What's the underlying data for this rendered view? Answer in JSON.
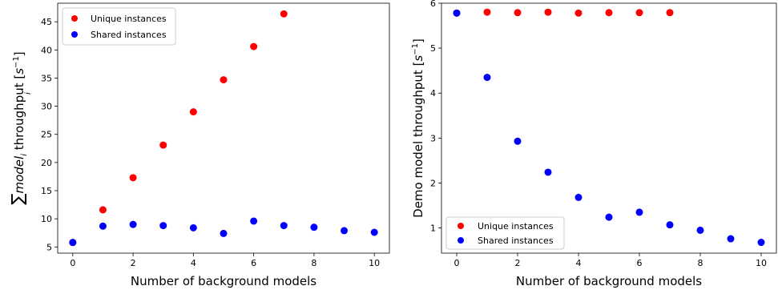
{
  "chart_data": [
    {
      "type": "scatter",
      "xlabel": "Number of background models",
      "ylabel_parts": {
        "sum": "∑",
        "sub_i": "i",
        "model": "model",
        "model_sub": "i",
        "rest": " throughput [",
        "unit": "s",
        "exp": "−1",
        "close": "]"
      },
      "xlim": [
        -0.5,
        10.5
      ],
      "ylim": [
        3.9,
        48.3
      ],
      "xticks": [
        0,
        2,
        4,
        6,
        8,
        10
      ],
      "yticks": [
        5,
        10,
        15,
        20,
        25,
        30,
        35,
        40,
        45
      ],
      "legend_position": "top-left",
      "series": [
        {
          "name": "Unique instances",
          "color": "#ff0000",
          "x": [
            0,
            1,
            2,
            3,
            4,
            5,
            6,
            7
          ],
          "y": [
            5.8,
            11.6,
            17.3,
            23.1,
            29.0,
            34.7,
            40.6,
            46.4
          ]
        },
        {
          "name": "Shared instances",
          "color": "#0000ff",
          "x": [
            0,
            1,
            2,
            3,
            4,
            5,
            6,
            7,
            8,
            9,
            10
          ],
          "y": [
            5.8,
            8.7,
            9.0,
            8.8,
            8.4,
            7.4,
            9.6,
            8.8,
            8.5,
            7.9,
            7.6
          ]
        }
      ]
    },
    {
      "type": "scatter",
      "xlabel": "Number of background models",
      "ylabel_parts": {
        "text": "Demo model throughput [",
        "unit": "s",
        "exp": "−1",
        "close": "]"
      },
      "xlim": [
        -0.5,
        10.5
      ],
      "ylim": [
        0.44,
        6.0
      ],
      "xticks": [
        0,
        2,
        4,
        6,
        8,
        10
      ],
      "yticks": [
        1,
        2,
        3,
        4,
        5,
        6
      ],
      "legend_position": "bottom-left",
      "series": [
        {
          "name": "Unique instances",
          "color": "#ff0000",
          "x": [
            0,
            1,
            2,
            3,
            4,
            5,
            6,
            7
          ],
          "y": [
            5.78,
            5.8,
            5.79,
            5.8,
            5.78,
            5.79,
            5.79,
            5.79
          ]
        },
        {
          "name": "Shared instances",
          "color": "#0000ff",
          "x": [
            0,
            1,
            2,
            3,
            4,
            5,
            6,
            7,
            8,
            9,
            10
          ],
          "y": [
            5.78,
            4.35,
            2.93,
            2.24,
            1.68,
            1.24,
            1.35,
            1.07,
            0.95,
            0.76,
            0.68
          ]
        }
      ]
    }
  ]
}
